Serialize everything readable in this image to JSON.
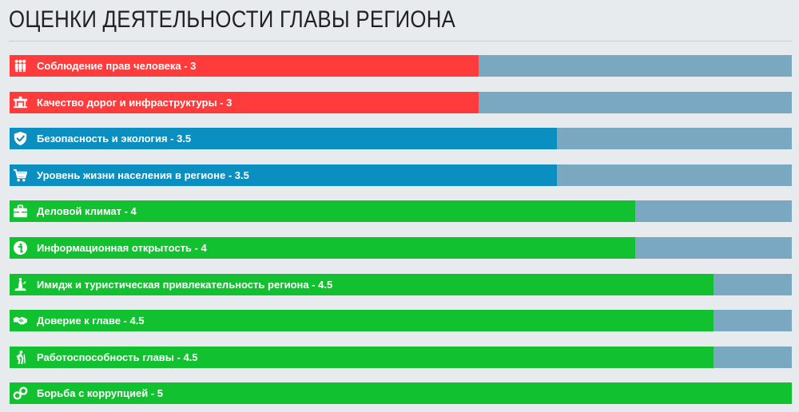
{
  "chart_data": {
    "type": "bar",
    "orientation": "horizontal",
    "title": "ОЦЕНКИ ДЕЯТЕЛЬНОСТИ ГЛАВЫ РЕГИОНА",
    "xlim": [
      0,
      5
    ],
    "grid": false,
    "legend": "none",
    "colors": {
      "low": "#ff3b3b",
      "mid": "#0b8ec0",
      "high": "#12c12f",
      "track": "#7ba8c1"
    },
    "bars": [
      {
        "label": "Соблюдение прав человека - 3",
        "value": 3,
        "color": "#ff3b3b",
        "icon": "people-icon"
      },
      {
        "label": "Качество дорог и инфраструктуры - 3",
        "value": 3,
        "color": "#ff3b3b",
        "icon": "road-icon"
      },
      {
        "label": "Безопасность и экология - 3.5",
        "value": 3.5,
        "color": "#0b8ec0",
        "icon": "shield-icon"
      },
      {
        "label": "Уровень жизни населения в регионе - 3.5",
        "value": 3.5,
        "color": "#0b8ec0",
        "icon": "cart-icon"
      },
      {
        "label": "Деловой климат - 4",
        "value": 4,
        "color": "#12c12f",
        "icon": "briefcase-icon"
      },
      {
        "label": "Информационная открытость - 4",
        "value": 4,
        "color": "#12c12f",
        "icon": "info-icon"
      },
      {
        "label": "Имидж и туристическая привлекательность региона - 4.5",
        "value": 4.5,
        "color": "#12c12f",
        "icon": "landmark-icon"
      },
      {
        "label": "Доверие к главе - 4.5",
        "value": 4.5,
        "color": "#12c12f",
        "icon": "handshake-icon"
      },
      {
        "label": "Работоспособность главы - 4.5",
        "value": 4.5,
        "color": "#12c12f",
        "icon": "hiker-icon"
      },
      {
        "label": "Борьба с коррупцией - 5",
        "value": 5,
        "color": "#12c12f",
        "icon": "handcuffs-icon"
      }
    ]
  }
}
